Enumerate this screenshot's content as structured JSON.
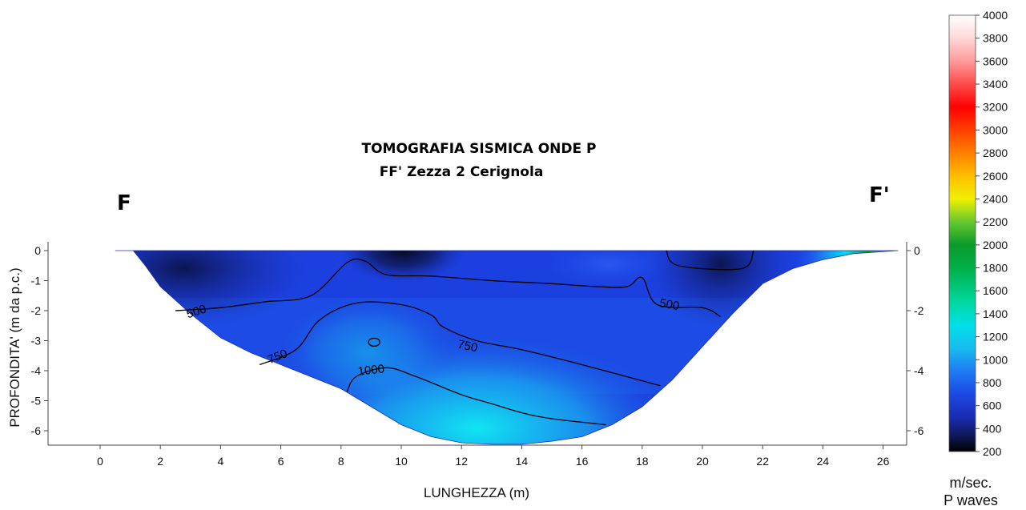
{
  "chart_data": {
    "type": "heatmap",
    "title": "TOMOGRAFIA SISMICA ONDE P",
    "subtitle": "FF' Zezza 2 Cerignola",
    "start_label": "F",
    "end_label": "F'",
    "xlabel": "LUNGHEZZA (m)",
    "ylabel": "PROFONDITA'  (m da p.c.)",
    "xlim": [
      -1.3,
      26.7
    ],
    "ylim": [
      -6.5,
      0.3
    ],
    "x_ticks": [
      0,
      2,
      4,
      6,
      8,
      10,
      12,
      14,
      16,
      18,
      20,
      22,
      24,
      26
    ],
    "y_ticks_left": [
      0,
      -1,
      -2,
      -3,
      -4,
      -5,
      -6
    ],
    "y_ticks_right": [
      0,
      -2,
      -4,
      -6
    ],
    "colorbar": {
      "min": 200,
      "max": 4000,
      "ticks": [
        200,
        400,
        600,
        800,
        1000,
        1200,
        1400,
        1600,
        1800,
        2000,
        2200,
        2400,
        2600,
        2800,
        3000,
        3200,
        3400,
        3600,
        3800,
        4000
      ],
      "unit_line1": "m/sec.",
      "unit_line2": "P waves",
      "stops": [
        [
          200,
          "#000000"
        ],
        [
          350,
          "#101a60"
        ],
        [
          500,
          "#1a2cb0"
        ],
        [
          700,
          "#1c48e6"
        ],
        [
          900,
          "#1e7cf2"
        ],
        [
          1100,
          "#17bcf0"
        ],
        [
          1300,
          "#00e0e8"
        ],
        [
          1500,
          "#00d8a0"
        ],
        [
          1800,
          "#00b048"
        ],
        [
          2000,
          "#0a9a2a"
        ],
        [
          2200,
          "#66c830"
        ],
        [
          2400,
          "#f0f000"
        ],
        [
          2600,
          "#ffbe00"
        ],
        [
          2800,
          "#ff8000"
        ],
        [
          3000,
          "#ff4000"
        ],
        [
          3200,
          "#ff0000"
        ],
        [
          3400,
          "#ff4a4a"
        ],
        [
          3600,
          "#ff9a9a"
        ],
        [
          3800,
          "#ffd8d8"
        ],
        [
          4000,
          "#ffffff"
        ]
      ]
    },
    "section_boundary": [
      [
        0.5,
        0.0
      ],
      [
        1.1,
        0.0
      ],
      [
        1.5,
        -0.5
      ],
      [
        2.0,
        -1.2
      ],
      [
        3.0,
        -2.1
      ],
      [
        4.0,
        -2.9
      ],
      [
        5.0,
        -3.4
      ],
      [
        6.0,
        -3.8
      ],
      [
        7.0,
        -4.2
      ],
      [
        8.0,
        -4.6
      ],
      [
        9.0,
        -5.2
      ],
      [
        10.0,
        -5.8
      ],
      [
        11.0,
        -6.2
      ],
      [
        12.0,
        -6.4
      ],
      [
        13.0,
        -6.45
      ],
      [
        14.0,
        -6.45
      ],
      [
        15.0,
        -6.35
      ],
      [
        16.0,
        -6.2
      ],
      [
        17.0,
        -5.8
      ],
      [
        18.0,
        -5.2
      ],
      [
        19.0,
        -4.3
      ],
      [
        20.0,
        -3.2
      ],
      [
        21.0,
        -2.1
      ],
      [
        22.0,
        -1.1
      ],
      [
        23.0,
        -0.6
      ],
      [
        24.0,
        -0.3
      ],
      [
        25.0,
        -0.1
      ],
      [
        26.5,
        0.0
      ]
    ],
    "contours": [
      {
        "level": "500",
        "points": [
          [
            2.5,
            -2.0
          ],
          [
            4.0,
            -1.9
          ],
          [
            5.5,
            -1.7
          ],
          [
            7.0,
            -1.5
          ],
          [
            8.2,
            -0.4
          ],
          [
            8.8,
            -0.35
          ],
          [
            9.5,
            -0.8
          ],
          [
            11.0,
            -0.85
          ],
          [
            13.0,
            -1.0
          ],
          [
            15.0,
            -1.1
          ],
          [
            16.5,
            -1.2
          ],
          [
            17.5,
            -1.2
          ],
          [
            18.0,
            -0.9
          ],
          [
            18.5,
            -1.8
          ],
          [
            20.0,
            -1.9
          ],
          [
            20.6,
            -2.2
          ]
        ]
      },
      {
        "level": "500",
        "points": [
          [
            18.8,
            0.0
          ],
          [
            19.2,
            -0.5
          ],
          [
            21.3,
            -0.6
          ],
          [
            21.7,
            0.0
          ]
        ]
      },
      {
        "level": "750",
        "points": [
          [
            5.3,
            -3.8
          ],
          [
            6.5,
            -3.3
          ],
          [
            7.3,
            -2.3
          ],
          [
            8.5,
            -1.75
          ],
          [
            10.0,
            -1.8
          ],
          [
            11.0,
            -2.15
          ],
          [
            11.4,
            -2.55
          ],
          [
            12.5,
            -3.0
          ],
          [
            14.0,
            -3.3
          ],
          [
            16.0,
            -3.8
          ],
          [
            18.6,
            -4.5
          ]
        ]
      },
      {
        "level": "1000",
        "points": [
          [
            8.2,
            -4.7
          ],
          [
            8.5,
            -4.2
          ],
          [
            9.5,
            -3.9
          ],
          [
            10.5,
            -4.2
          ],
          [
            12.0,
            -4.8
          ],
          [
            13.0,
            -5.1
          ],
          [
            14.0,
            -5.4
          ],
          [
            15.0,
            -5.6
          ],
          [
            16.8,
            -5.8
          ]
        ]
      }
    ],
    "small_closed_contour": {
      "x": 9.1,
      "y": -3.05
    },
    "contour_labels": [
      {
        "text": "500",
        "x": 3.2,
        "y": -2.05,
        "angle": -18
      },
      {
        "text": "500",
        "x": 18.9,
        "y": -1.82,
        "angle": 10
      },
      {
        "text": "750",
        "x": 5.9,
        "y": -3.55,
        "angle": -22
      },
      {
        "text": "750",
        "x": 12.2,
        "y": -3.2,
        "angle": 12
      },
      {
        "text": "1000",
        "x": 9.0,
        "y": -4.0,
        "angle": -6
      }
    ]
  }
}
